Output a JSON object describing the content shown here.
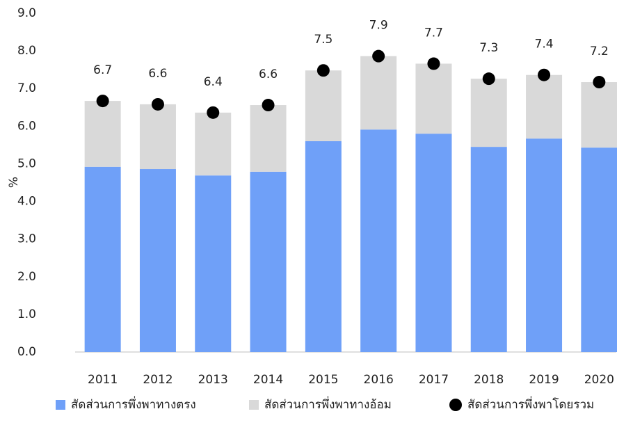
{
  "chart_data": {
    "type": "bar",
    "stacked": true,
    "y_label": "%",
    "categories": [
      "2011",
      "2012",
      "2013",
      "2014",
      "2015",
      "2016",
      "2017",
      "2018",
      "2019",
      "2020"
    ],
    "series": [
      {
        "name": "สัดส่วนการพึ่งพาทางตรง",
        "color": "#6fa0f8",
        "values": [
          4.92,
          4.86,
          4.69,
          4.79,
          5.6,
          5.91,
          5.8,
          5.45,
          5.67,
          5.43
        ]
      },
      {
        "name": "สัดส่วนการพึ่งพาทางอ้อม",
        "color": "#d9d9d9",
        "values": [
          1.75,
          1.72,
          1.67,
          1.77,
          1.88,
          1.95,
          1.86,
          1.81,
          1.69,
          1.74
        ]
      },
      {
        "name": "สัดส่วนการพึ่งพาโดยรวม",
        "color": "#000000",
        "type": "scatter",
        "values": [
          6.67,
          6.58,
          6.36,
          6.56,
          7.48,
          7.86,
          7.66,
          7.26,
          7.36,
          7.17
        ],
        "value_labels": [
          "6.7",
          "6.6",
          "6.4",
          "6.6",
          "7.5",
          "7.9",
          "7.7",
          "7.3",
          "7.4",
          "7.2"
        ]
      }
    ],
    "ylim": [
      0,
      9
    ],
    "yticks": [
      {
        "value": 0,
        "label": "0.0"
      },
      {
        "value": 1,
        "label": "1.0"
      },
      {
        "value": 2,
        "label": "2.0"
      },
      {
        "value": 3,
        "label": "3.0"
      },
      {
        "value": 4,
        "label": "4.0"
      },
      {
        "value": 5,
        "label": "5.0"
      },
      {
        "value": 6,
        "label": "6.0"
      },
      {
        "value": 7,
        "label": "7.0"
      },
      {
        "value": 8,
        "label": "8.0"
      },
      {
        "value": 9,
        "label": "9.0"
      }
    ],
    "grid": false,
    "legend": "bottom"
  }
}
